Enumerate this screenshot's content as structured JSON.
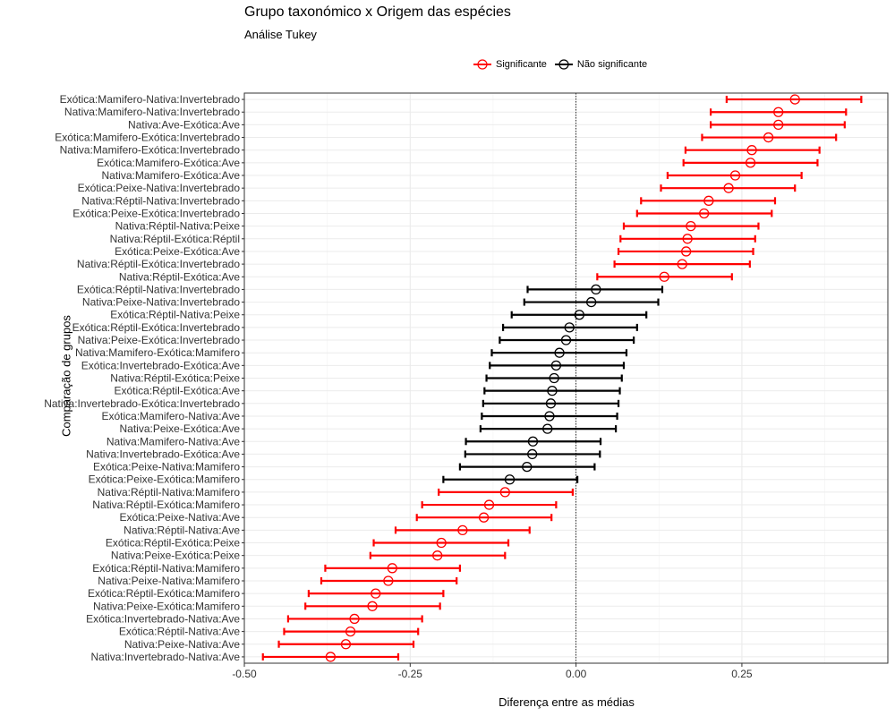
{
  "title": "Grupo taxonómico x Origem das espécies",
  "subtitle": "Análise Tukey",
  "legend": {
    "significant_label": "Significante",
    "not_significant_label": "Não significante"
  },
  "colors": {
    "significant": "#ff0000",
    "not_significant": "#000000"
  },
  "chart_data": {
    "type": "errorbar",
    "xlabel": "Diferença entre as médias",
    "ylabel": "Comparação de grupos",
    "xlim": [
      -0.5,
      0.47
    ],
    "xticks": [
      -0.5,
      -0.25,
      0.0,
      0.25
    ],
    "xtick_labels": [
      "-0.50",
      "-0.25",
      "0.00",
      "0.25"
    ],
    "reference_line_x": 0,
    "legend_position": "top",
    "grid": true,
    "rows": [
      {
        "label": "Exótica:Mamifero-Nativa:Invertebrado",
        "diff": 0.33,
        "lwr": 0.227,
        "upr": 0.43,
        "significant": true
      },
      {
        "label": "Nativa:Mamifero-Nativa:Invertebrado",
        "diff": 0.305,
        "lwr": 0.203,
        "upr": 0.407,
        "significant": true
      },
      {
        "label": "Nativa:Ave-Exótica:Ave",
        "diff": 0.305,
        "lwr": 0.203,
        "upr": 0.405,
        "significant": true
      },
      {
        "label": "Exótica:Mamifero-Exótica:Invertebrado",
        "diff": 0.29,
        "lwr": 0.19,
        "upr": 0.392,
        "significant": true
      },
      {
        "label": "Nativa:Mamifero-Exótica:Invertebrado",
        "diff": 0.265,
        "lwr": 0.165,
        "upr": 0.367,
        "significant": true
      },
      {
        "label": "Exótica:Mamifero-Exótica:Ave",
        "diff": 0.263,
        "lwr": 0.162,
        "upr": 0.364,
        "significant": true
      },
      {
        "label": "Nativa:Mamifero-Exótica:Ave",
        "diff": 0.24,
        "lwr": 0.138,
        "upr": 0.34,
        "significant": true
      },
      {
        "label": "Exótica:Peixe-Nativa:Invertebrado",
        "diff": 0.23,
        "lwr": 0.128,
        "upr": 0.33,
        "significant": true
      },
      {
        "label": "Nativa:Réptil-Nativa:Invertebrado",
        "diff": 0.2,
        "lwr": 0.098,
        "upr": 0.3,
        "significant": true
      },
      {
        "label": "Exótica:Peixe-Exótica:Invertebrado",
        "diff": 0.193,
        "lwr": 0.092,
        "upr": 0.295,
        "significant": true
      },
      {
        "label": "Nativa:Réptil-Nativa:Peixe",
        "diff": 0.173,
        "lwr": 0.072,
        "upr": 0.275,
        "significant": true
      },
      {
        "label": "Nativa:Réptil-Exótica:Réptil",
        "diff": 0.168,
        "lwr": 0.067,
        "upr": 0.27,
        "significant": true
      },
      {
        "label": "Exótica:Peixe-Exótica:Ave",
        "diff": 0.166,
        "lwr": 0.064,
        "upr": 0.267,
        "significant": true
      },
      {
        "label": "Nativa:Réptil-Exótica:Invertebrado",
        "diff": 0.16,
        "lwr": 0.058,
        "upr": 0.262,
        "significant": true
      },
      {
        "label": "Nativa:Réptil-Exótica:Ave",
        "diff": 0.133,
        "lwr": 0.032,
        "upr": 0.235,
        "significant": true
      },
      {
        "label": "Exótica:Réptil-Nativa:Invertebrado",
        "diff": 0.03,
        "lwr": -0.073,
        "upr": 0.13,
        "significant": false
      },
      {
        "label": "Nativa:Peixe-Nativa:Invertebrado",
        "diff": 0.023,
        "lwr": -0.078,
        "upr": 0.124,
        "significant": false
      },
      {
        "label": "Exótica:Réptil-Nativa:Peixe",
        "diff": 0.005,
        "lwr": -0.097,
        "upr": 0.106,
        "significant": false
      },
      {
        "label": "Exótica:Réptil-Exótica:Invertebrado",
        "diff": -0.01,
        "lwr": -0.11,
        "upr": 0.092,
        "significant": false
      },
      {
        "label": "Nativa:Peixe-Exótica:Invertebrado",
        "diff": -0.015,
        "lwr": -0.115,
        "upr": 0.087,
        "significant": false
      },
      {
        "label": "Nativa:Mamifero-Exótica:Mamifero",
        "diff": -0.025,
        "lwr": -0.127,
        "upr": 0.076,
        "significant": false
      },
      {
        "label": "Exótica:Invertebrado-Exótica:Ave",
        "diff": -0.03,
        "lwr": -0.13,
        "upr": 0.072,
        "significant": false
      },
      {
        "label": "Nativa:Réptil-Exótica:Peixe",
        "diff": -0.033,
        "lwr": -0.135,
        "upr": 0.069,
        "significant": false
      },
      {
        "label": "Exótica:Réptil-Exótica:Ave",
        "diff": -0.036,
        "lwr": -0.138,
        "upr": 0.066,
        "significant": false
      },
      {
        "label": "Nativa:Invertebrado-Exótica:Invertebrado",
        "diff": -0.038,
        "lwr": -0.14,
        "upr": 0.064,
        "significant": false
      },
      {
        "label": "Exótica:Mamifero-Nativa:Ave",
        "diff": -0.04,
        "lwr": -0.142,
        "upr": 0.062,
        "significant": false
      },
      {
        "label": "Nativa:Peixe-Exótica:Ave",
        "diff": -0.043,
        "lwr": -0.144,
        "upr": 0.06,
        "significant": false
      },
      {
        "label": "Nativa:Mamifero-Nativa:Ave",
        "diff": -0.065,
        "lwr": -0.166,
        "upr": 0.037,
        "significant": false
      },
      {
        "label": "Nativa:Invertebrado-Exótica:Ave",
        "diff": -0.066,
        "lwr": -0.167,
        "upr": 0.036,
        "significant": false
      },
      {
        "label": "Exótica:Peixe-Nativa:Mamifero",
        "diff": -0.074,
        "lwr": -0.175,
        "upr": 0.028,
        "significant": false
      },
      {
        "label": "Exótica:Peixe-Exótica:Mamifero",
        "diff": -0.1,
        "lwr": -0.2,
        "upr": 0.002,
        "significant": false
      },
      {
        "label": "Nativa:Réptil-Nativa:Mamifero",
        "diff": -0.107,
        "lwr": -0.207,
        "upr": -0.005,
        "significant": true
      },
      {
        "label": "Nativa:Réptil-Exótica:Mamifero",
        "diff": -0.131,
        "lwr": -0.232,
        "upr": -0.03,
        "significant": true
      },
      {
        "label": "Exótica:Peixe-Nativa:Ave",
        "diff": -0.139,
        "lwr": -0.24,
        "upr": -0.037,
        "significant": true
      },
      {
        "label": "Nativa:Réptil-Nativa:Ave",
        "diff": -0.171,
        "lwr": -0.272,
        "upr": -0.07,
        "significant": true
      },
      {
        "label": "Exótica:Réptil-Exótica:Peixe",
        "diff": -0.203,
        "lwr": -0.305,
        "upr": -0.102,
        "significant": true
      },
      {
        "label": "Nativa:Peixe-Exótica:Peixe",
        "diff": -0.209,
        "lwr": -0.31,
        "upr": -0.107,
        "significant": true
      },
      {
        "label": "Exótica:Réptil-Nativa:Mamifero",
        "diff": -0.277,
        "lwr": -0.378,
        "upr": -0.175,
        "significant": true
      },
      {
        "label": "Nativa:Peixe-Nativa:Mamifero",
        "diff": -0.283,
        "lwr": -0.384,
        "upr": -0.18,
        "significant": true
      },
      {
        "label": "Exótica:Réptil-Exótica:Mamifero",
        "diff": -0.302,
        "lwr": -0.403,
        "upr": -0.2,
        "significant": true
      },
      {
        "label": "Nativa:Peixe-Exótica:Mamifero",
        "diff": -0.307,
        "lwr": -0.408,
        "upr": -0.205,
        "significant": true
      },
      {
        "label": "Exótica:Invertebrado-Nativa:Ave",
        "diff": -0.334,
        "lwr": -0.434,
        "upr": -0.232,
        "significant": true
      },
      {
        "label": "Exótica:Réptil-Nativa:Ave",
        "diff": -0.34,
        "lwr": -0.44,
        "upr": -0.238,
        "significant": true
      },
      {
        "label": "Nativa:Peixe-Nativa:Ave",
        "diff": -0.347,
        "lwr": -0.448,
        "upr": -0.245,
        "significant": true
      },
      {
        "label": "Nativa:Invertebrado-Nativa:Ave",
        "diff": -0.37,
        "lwr": -0.472,
        "upr": -0.268,
        "significant": true
      }
    ]
  }
}
